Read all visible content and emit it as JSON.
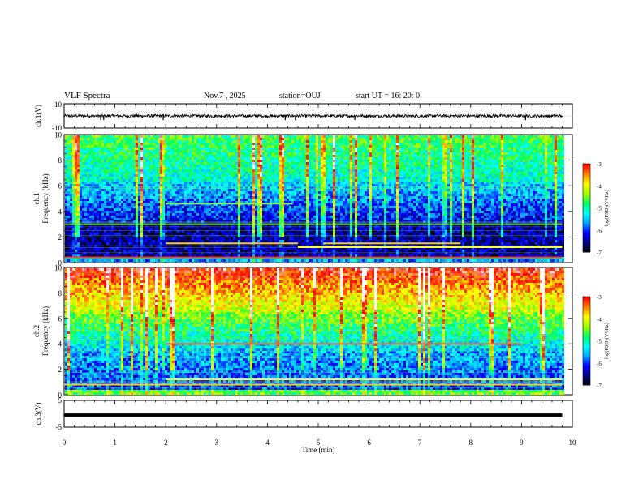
{
  "header": {
    "title": "VLF Spectra",
    "date": "Nov.7 , 2025",
    "station": "station=OUJ",
    "start": "start UT = 16: 20: 0"
  },
  "chart_data": {
    "type": "heatmap",
    "panels": [
      {
        "id": "ch1-waveform",
        "kind": "line",
        "ylabel": "ch.1(V)",
        "ylim": [
          -10,
          10
        ],
        "yticks": [
          "10",
          "-10"
        ],
        "trace_color": "#000000",
        "trace_amplitude": 1.2,
        "spike_times_min": [
          0.72,
          0.78,
          1.95,
          4.35,
          4.55,
          5.72,
          9.08
        ]
      },
      {
        "id": "ch1-spectrogram",
        "kind": "spectrogram",
        "ylabel_line1": "ch.1",
        "ylabel_line2": "Frequency (kHz)",
        "ylim": [
          0,
          10
        ],
        "yticks": [
          "0",
          "2",
          "4",
          "6",
          "8",
          "10"
        ],
        "colorbar": {
          "label": "log(PSD)(V²/Hz)",
          "range": [
            -7,
            -3
          ],
          "ticks": [
            "-3",
            "-4",
            "-5",
            "-6",
            "-7"
          ]
        },
        "background_log_psd": "low (blue/black) below ~6 kHz, green/cyan above",
        "tone_lines": [
          {
            "freq_khz": 1.5,
            "t_start": 2.0,
            "t_end": 4.6,
            "color": "#ffd000"
          },
          {
            "freq_khz": 1.5,
            "t_start": 5.1,
            "t_end": 7.8,
            "color": "#ffd000"
          },
          {
            "freq_khz": 1.2,
            "t_start": 4.6,
            "t_end": 9.8,
            "color": "#ffff40"
          },
          {
            "freq_khz": 0.4,
            "t_start": 0.0,
            "t_end": 9.8,
            "color": "#ff4040"
          },
          {
            "freq_khz": 4.6,
            "t_start": 2.0,
            "t_end": 4.5,
            "color": "#80ff40"
          },
          {
            "freq_khz": 3.0,
            "t_start": 0.0,
            "t_end": 9.8,
            "color": "#80ff40"
          }
        ]
      },
      {
        "id": "ch2-spectrogram",
        "kind": "spectrogram",
        "ylabel_line1": "ch.2",
        "ylabel_line2": "Frequency (kHz)",
        "ylim": [
          0,
          10
        ],
        "yticks": [
          "0",
          "2",
          "4",
          "6",
          "8",
          "10"
        ],
        "colorbar": {
          "label": "log(PSD)(V²/Hz)",
          "range": [
            -7,
            -3
          ],
          "ticks": [
            "-3",
            "-4",
            "-5",
            "-6",
            "-7"
          ]
        },
        "background_log_psd": "high (red/orange) above ~7 kHz, green mid, blue below ~4 kHz",
        "tone_lines": [
          {
            "freq_khz": 4.0,
            "t_start": 2.0,
            "t_end": 9.0,
            "color": "#ff6040"
          },
          {
            "freq_khz": 1.2,
            "t_start": 2.0,
            "t_end": 9.8,
            "color": "#ffff40"
          },
          {
            "freq_khz": 0.8,
            "t_start": 0.0,
            "t_end": 9.8,
            "color": "#ffd000"
          }
        ]
      },
      {
        "id": "ch3-waveform",
        "kind": "line",
        "ylabel": "ch.3(V)",
        "ylim": [
          -5,
          5
        ],
        "yticks": [
          "5",
          "-5"
        ],
        "trace_level": -0.5,
        "trace_color": "#000000"
      }
    ],
    "x": {
      "label": "Time (min)",
      "range": [
        0,
        10
      ],
      "ticks": [
        "0",
        "1",
        "2",
        "3",
        "4",
        "5",
        "6",
        "7",
        "8",
        "9",
        "10"
      ],
      "data_end_min": 9.8
    },
    "colormap": [
      "#000000",
      "#000080",
      "#0000ff",
      "#00a0ff",
      "#00ffff",
      "#00ff60",
      "#a0ff00",
      "#ffff00",
      "#ff8000",
      "#ff0000",
      "#ffffff"
    ]
  }
}
